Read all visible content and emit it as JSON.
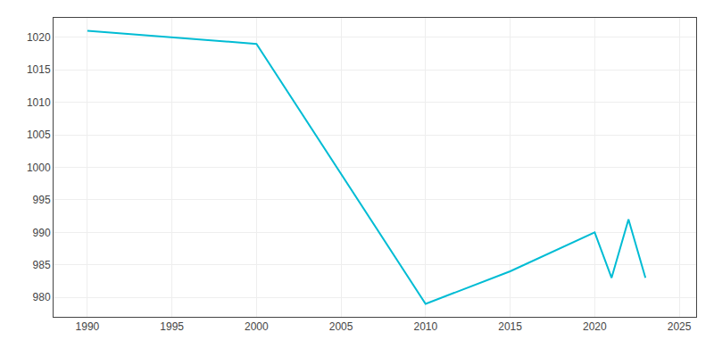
{
  "chart_data": {
    "type": "line",
    "x": [
      1990,
      1995,
      2000,
      2010,
      2015,
      2020,
      2021,
      2022,
      2023
    ],
    "values": [
      1021,
      1020,
      1019,
      979,
      984,
      990,
      983,
      992,
      983
    ],
    "color": "#00BCD4",
    "xlim": [
      1988,
      2026
    ],
    "ylim": [
      977,
      1023
    ],
    "xticks": [
      1990,
      1995,
      2000,
      2005,
      2010,
      2015,
      2020,
      2025
    ],
    "yticks": [
      980,
      985,
      990,
      995,
      1000,
      1005,
      1010,
      1015,
      1020
    ],
    "grid": true
  }
}
